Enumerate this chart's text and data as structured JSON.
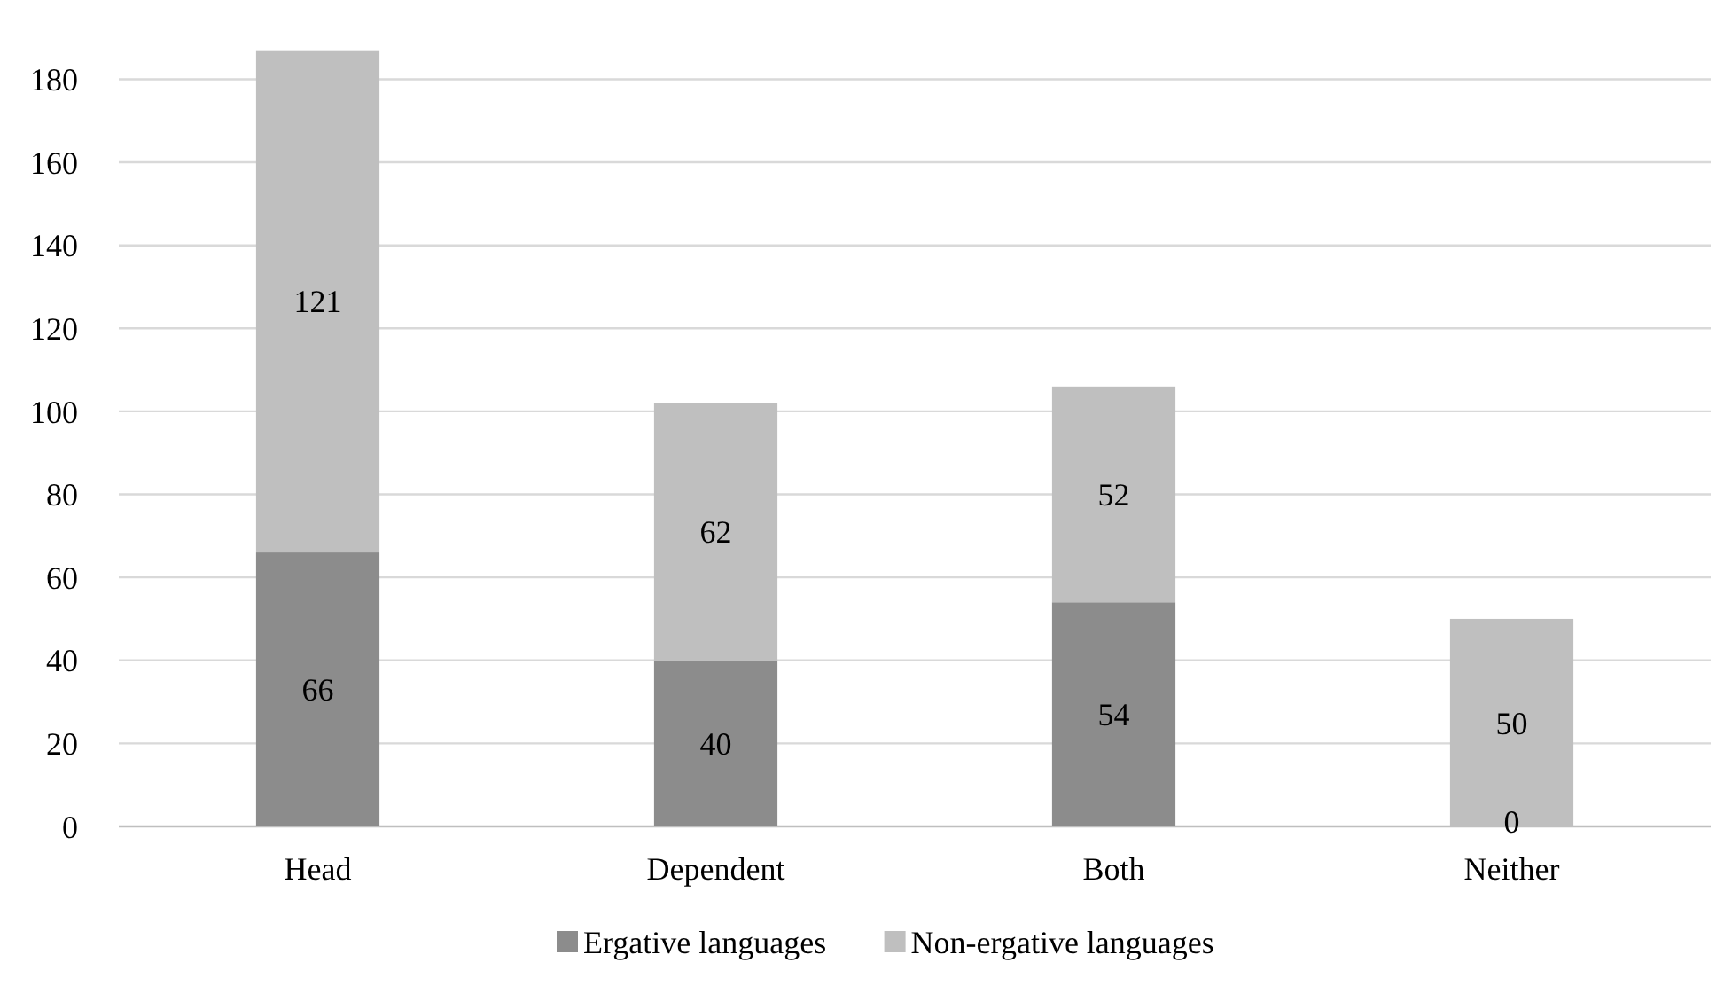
{
  "chart_data": {
    "type": "bar",
    "stacked": true,
    "categories": [
      "Head",
      "Dependent",
      "Both",
      "Neither"
    ],
    "series": [
      {
        "name": "Ergative languages",
        "color": "#8c8c8c",
        "values": [
          66,
          40,
          54,
          0
        ],
        "value_labels": [
          "66",
          "40",
          "54",
          null
        ]
      },
      {
        "name": "Non-ergative languages",
        "color": "#bfbfbf",
        "values": [
          121,
          62,
          52,
          50
        ],
        "value_labels": [
          "121",
          "62",
          "52",
          "50"
        ]
      }
    ],
    "annotations": [
      {
        "text": "0",
        "x": "Neither",
        "y": 0
      }
    ],
    "ylim": [
      0,
      188
    ],
    "yticks": [
      0,
      20,
      40,
      60,
      80,
      100,
      120,
      140,
      160,
      180
    ],
    "grid": "y",
    "legend": "bottom"
  }
}
